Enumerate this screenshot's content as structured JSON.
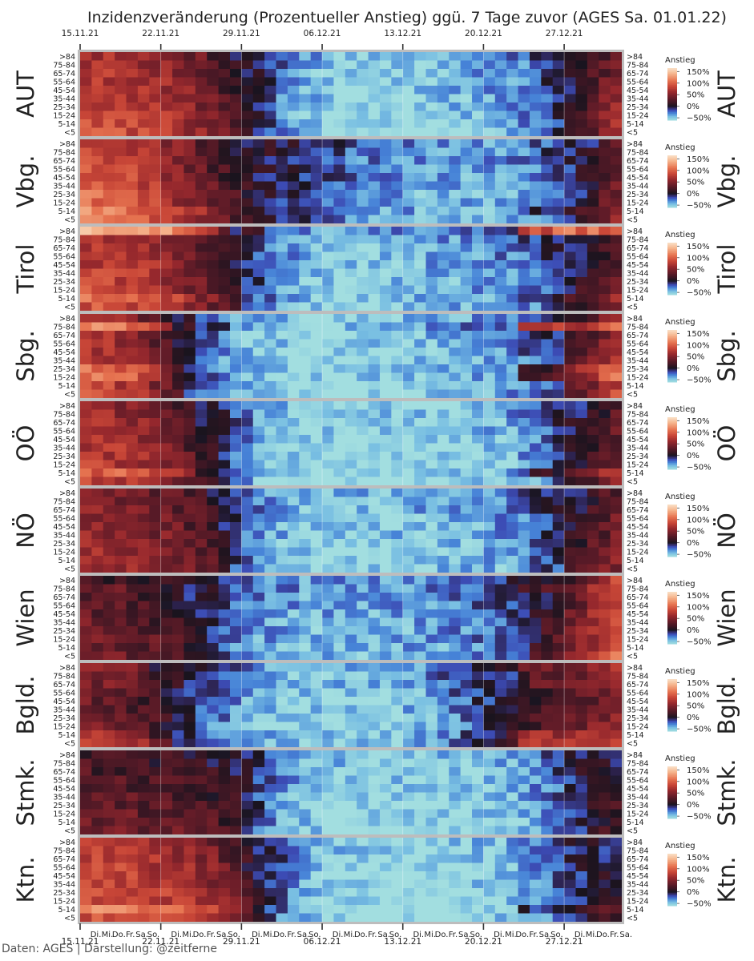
{
  "chart_data": {
    "type": "heatmap",
    "title": "Inzidenzveränderung (Prozentueller Anstieg) ggü. 7 Tage zuvor (AGES Sa. 01.01.22)",
    "x_dates": [
      "15.11.21",
      "22.11.21",
      "29.11.21",
      "06.12.21",
      "13.12.21",
      "20.12.21",
      "27.12.21"
    ],
    "weekday_labels": [
      [
        "Di.",
        "Mi.",
        "Do.",
        "Fr.",
        "Sa.",
        "So."
      ],
      [
        "Di.",
        "Mi.",
        "Do.",
        "Fr.",
        "Sa.",
        "So."
      ],
      [
        "Di.",
        "Mi.",
        "Do.",
        "Fr.",
        "Sa.",
        "So."
      ],
      [
        "Di.",
        "Mi.",
        "Do.",
        "Fr.",
        "Sa.",
        "So."
      ],
      [
        "Di.",
        "Mi.",
        "Do.",
        "Fr.",
        "Sa.",
        "So."
      ],
      [
        "Di.",
        "Mi.",
        "Do.",
        "Fr.",
        "Sa.",
        "So."
      ],
      [
        "Di.",
        "Mi.",
        "Do.",
        "Fr.",
        "Sa."
      ]
    ],
    "age_groups": [
      ">84",
      "75-84",
      "65-74",
      "55-64",
      "45-54",
      "35-44",
      "25-34",
      "15-24",
      "5-14",
      "<5"
    ],
    "colorbar": {
      "label": "Anstieg",
      "ticks": [
        "150%",
        "100%",
        "50%",
        "0%",
        "−50%"
      ],
      "range": [
        -60,
        165
      ],
      "colormap": "icefire"
    },
    "regions": [
      {
        "name": "AUT",
        "profile": [
          80,
          78,
          72,
          62,
          45,
          18,
          -10,
          -35,
          -50,
          -57,
          -56,
          -55,
          -50,
          -44,
          -38,
          -30,
          -10,
          20,
          55
        ],
        "boost": [
          0,
          0,
          0,
          0,
          0,
          0,
          0,
          0,
          0,
          0
        ]
      },
      {
        "name": "Vbg.",
        "profile": [
          100,
          95,
          80,
          60,
          35,
          15,
          0,
          -8,
          -15,
          -28,
          -35,
          -38,
          -40,
          -42,
          -40,
          -30,
          -20,
          0,
          40
        ],
        "boost": [
          0,
          0,
          0,
          0,
          0,
          0,
          0,
          0,
          10,
          0
        ]
      },
      {
        "name": "Tirol",
        "profile": [
          80,
          78,
          70,
          55,
          30,
          5,
          -20,
          -40,
          -50,
          -52,
          -52,
          -45,
          -40,
          -38,
          -35,
          -25,
          -10,
          10,
          30
        ],
        "boost": [
          50,
          0,
          0,
          0,
          0,
          0,
          0,
          0,
          10,
          0
        ]
      },
      {
        "name": "Sbg.",
        "profile": [
          75,
          70,
          50,
          15,
          -20,
          -40,
          -50,
          -55,
          -57,
          -57,
          -55,
          -52,
          -48,
          -42,
          -35,
          -25,
          -10,
          30,
          70
        ],
        "boost": [
          0,
          40,
          0,
          0,
          0,
          0,
          20,
          20,
          0,
          0
        ]
      },
      {
        "name": "OÖ",
        "profile": [
          70,
          68,
          60,
          40,
          10,
          -20,
          -45,
          -55,
          -57,
          -58,
          -58,
          -57,
          -55,
          -52,
          -45,
          -35,
          -15,
          10,
          35
        ],
        "boost": [
          0,
          0,
          0,
          0,
          0,
          0,
          0,
          0,
          15,
          0
        ]
      },
      {
        "name": "NÖ",
        "profile": [
          60,
          55,
          48,
          40,
          25,
          -10,
          -35,
          -48,
          -52,
          -52,
          -50,
          -46,
          -44,
          -42,
          -38,
          -28,
          -10,
          15,
          40
        ],
        "boost": [
          0,
          0,
          0,
          0,
          0,
          0,
          0,
          0,
          0,
          0
        ]
      },
      {
        "name": "Wien",
        "profile": [
          35,
          30,
          25,
          15,
          -5,
          -25,
          -35,
          -40,
          -42,
          -42,
          -40,
          -38,
          -35,
          -30,
          -20,
          -5,
          20,
          50,
          90
        ],
        "boost": [
          0,
          10,
          0,
          0,
          0,
          0,
          0,
          0,
          0,
          0
        ]
      },
      {
        "name": "Bgld.",
        "profile": [
          40,
          35,
          20,
          0,
          -20,
          -35,
          -45,
          -50,
          -52,
          -52,
          -50,
          -45,
          -35,
          -20,
          -5,
          10,
          25,
          35,
          45
        ],
        "boost": [
          20,
          10,
          10,
          0,
          0,
          0,
          0,
          0,
          20,
          20
        ]
      },
      {
        "name": "Stmk.",
        "profile": [
          30,
          28,
          25,
          22,
          18,
          10,
          -20,
          -40,
          -50,
          -55,
          -55,
          -55,
          -54,
          -52,
          -48,
          -40,
          -25,
          0,
          10
        ],
        "boost": [
          0,
          0,
          0,
          0,
          0,
          0,
          0,
          0,
          0,
          0
        ]
      },
      {
        "name": "Ktn.",
        "profile": [
          80,
          85,
          80,
          70,
          60,
          35,
          -5,
          -35,
          -52,
          -57,
          -58,
          -58,
          -57,
          -55,
          -50,
          -35,
          -20,
          -5,
          10
        ],
        "boost": [
          0,
          0,
          0,
          0,
          0,
          0,
          0,
          0,
          15,
          0
        ]
      }
    ]
  },
  "credit": "Daten: AGES | Darstellung: @zeitferne"
}
